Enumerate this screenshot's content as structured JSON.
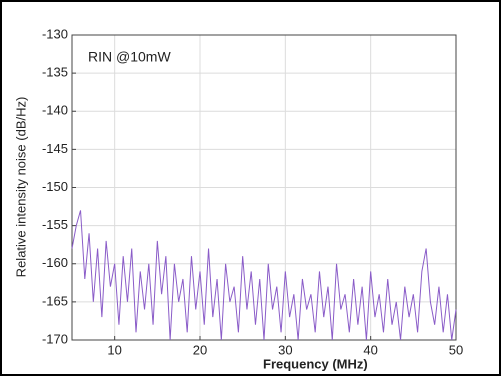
{
  "chart_data": {
    "type": "line",
    "annotation": "RIN @10mW",
    "x_label": "Frequency (MHz)",
    "y_label": "Relative intensity noise (dB/Hz)",
    "color": "#8a5cc8",
    "grid": true,
    "xlim": [
      5,
      50
    ],
    "ylim": [
      -170,
      -130
    ],
    "xticks": [
      10,
      20,
      30,
      40,
      50
    ],
    "yticks": [
      -130,
      -135,
      -140,
      -145,
      -150,
      -155,
      -160,
      -165,
      -170
    ],
    "x": [
      5,
      5.5,
      6,
      6.5,
      7,
      7.5,
      8,
      8.5,
      9,
      9.5,
      10,
      10.5,
      11,
      11.5,
      12,
      12.5,
      13,
      13.5,
      14,
      14.5,
      15,
      15.5,
      16,
      16.5,
      17,
      17.5,
      18,
      18.5,
      19,
      19.5,
      20,
      20.5,
      21,
      21.5,
      22,
      22.5,
      23,
      23.5,
      24,
      24.5,
      25,
      25.5,
      26,
      26.5,
      27,
      27.5,
      28,
      28.5,
      29,
      29.5,
      30,
      30.5,
      31,
      31.5,
      32,
      32.5,
      33,
      33.5,
      34,
      34.5,
      35,
      35.5,
      36,
      36.5,
      37,
      37.5,
      38,
      38.5,
      39,
      39.5,
      40,
      40.5,
      41,
      41.5,
      42,
      42.5,
      43,
      43.5,
      44,
      44.5,
      45,
      45.5,
      46,
      46.5,
      47,
      47.5,
      48,
      48.5,
      49,
      49.5,
      50
    ],
    "values": [
      -158,
      -155,
      -153,
      -162,
      -156,
      -165,
      -158,
      -167,
      -157,
      -163,
      -160,
      -168,
      -159,
      -165,
      -158,
      -169,
      -161,
      -166,
      -160,
      -168,
      -157,
      -164,
      -159,
      -170,
      -160,
      -165,
      -162,
      -169,
      -159,
      -166,
      -161,
      -168,
      -158,
      -167,
      -162,
      -170,
      -160,
      -165,
      -163,
      -169,
      -159,
      -166,
      -161,
      -168,
      -162,
      -170,
      -160,
      -166,
      -163,
      -169,
      -161,
      -167,
      -164,
      -170,
      -162,
      -166,
      -164,
      -169,
      -161,
      -167,
      -163,
      -170,
      -160,
      -166,
      -164,
      -169,
      -162,
      -168,
      -163,
      -170,
      -161,
      -167,
      -164,
      -169,
      -162,
      -168,
      -165,
      -170,
      -163,
      -167,
      -164,
      -169,
      -161,
      -158,
      -165,
      -168,
      -163,
      -169,
      -164,
      -170,
      -166
    ]
  }
}
